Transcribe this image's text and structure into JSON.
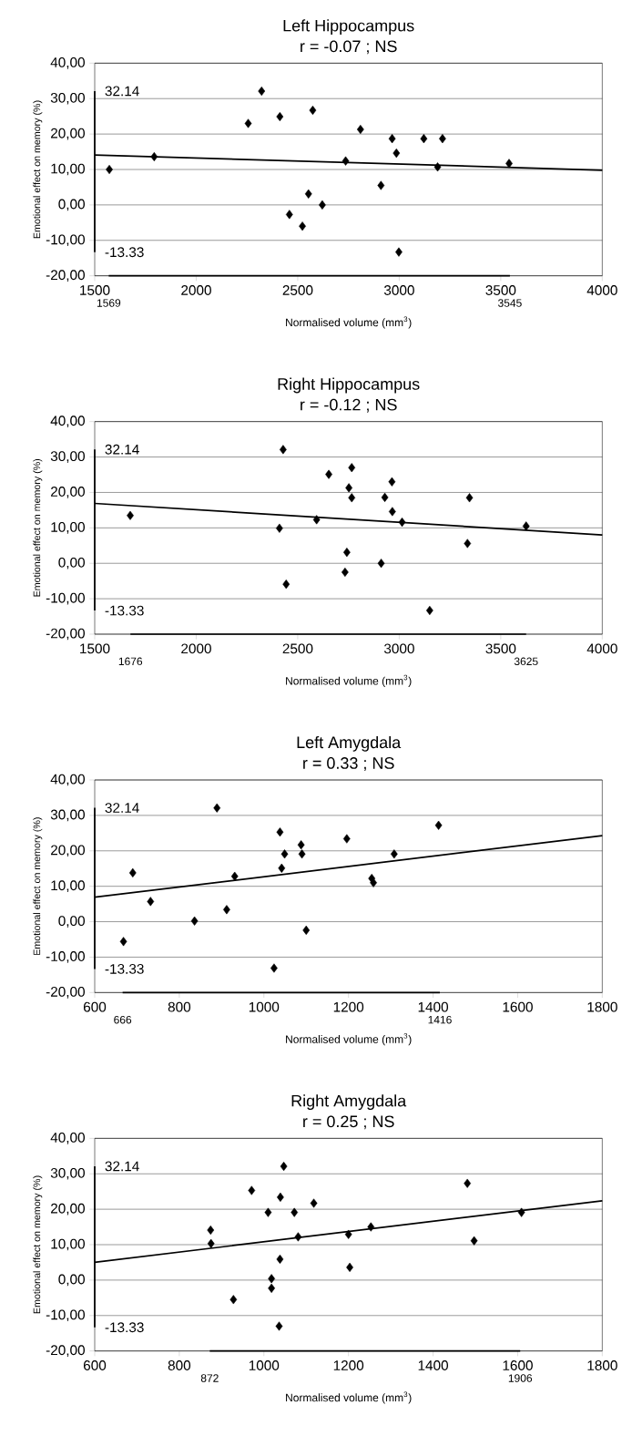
{
  "chart_data": [
    {
      "type": "scatter",
      "title": "Left Hippocampus",
      "subtitle": "r = -0.07 ; NS",
      "xlabel": "Normalised volume (mm$^{3}$)",
      "ylabel": "Emotional effect on memory (%)",
      "xlim": [
        1500,
        4000
      ],
      "xticks": [
        1500,
        2000,
        2500,
        3000,
        3500,
        4000
      ],
      "ylim": [
        -20,
        40
      ],
      "yticks": [
        {
          "value": -20,
          "label": "-20,00"
        },
        {
          "value": -10,
          "label": "-10,00"
        },
        {
          "value": 0,
          "label": "0,00"
        },
        {
          "value": 10,
          "label": "10,00"
        },
        {
          "value": 20,
          "label": "20,00"
        },
        {
          "value": 30,
          "label": "30,00"
        },
        {
          "value": 40,
          "label": "40,00"
        }
      ],
      "grid": "y",
      "marker": "diamond",
      "series": [
        {
          "type": "scatter",
          "color": "#000000",
          "x": [
            1572,
            1793,
            2256,
            2322,
            2412,
            2574,
            2809,
            2736,
            2965,
            2986,
            3121,
            3213,
            3189,
            3541,
            2910,
            2553,
            2621,
            2459,
            2523,
            2998
          ],
          "values": [
            10.0,
            13.6,
            23.0,
            32.1,
            24.9,
            26.7,
            21.3,
            12.4,
            18.7,
            14.6,
            18.7,
            18.7,
            10.7,
            11.7,
            5.5,
            3.1,
            0.0,
            -2.7,
            -6.0,
            -13.3
          ]
        },
        {
          "type": "line",
          "marker": "none",
          "color": "#000000",
          "x": [
            1500,
            4000
          ],
          "values": [
            14.1,
            9.8
          ]
        },
        {
          "type": "line",
          "marker": "none",
          "color": "#000000",
          "x": [
            1500,
            1500
          ],
          "values": [
            32.14,
            -13.33
          ]
        },
        {
          "type": "line",
          "marker": "none",
          "color": "#000000",
          "x": [
            1569,
            3545
          ],
          "values": [
            -20,
            -20
          ]
        }
      ],
      "annotations": [
        {
          "text": "32.14",
          "x": 1500,
          "y": 32.14
        },
        {
          "text": "-13.33",
          "x": 1500,
          "y": -13.33
        },
        {
          "text": "1569",
          "x": 1569,
          "y": -20
        },
        {
          "text": "3545",
          "x": 3545,
          "y": -20
        }
      ]
    },
    {
      "type": "scatter",
      "title": "Right Hippocampus",
      "subtitle": "r = -0.12 ; NS",
      "xlabel": "Normalised volume (mm$^{3}$)",
      "ylabel": "Emotional effect on memory (%)",
      "xlim": [
        1500,
        4000
      ],
      "xticks": [
        1500,
        2000,
        2500,
        3000,
        3500,
        4000
      ],
      "ylim": [
        -20,
        40
      ],
      "yticks": [
        {
          "value": -20,
          "label": "-20,00"
        },
        {
          "value": -10,
          "label": "-10,00"
        },
        {
          "value": 0,
          "label": "0,00"
        },
        {
          "value": 10,
          "label": "10,00"
        },
        {
          "value": 20,
          "label": "20,00"
        },
        {
          "value": 30,
          "label": "30,00"
        },
        {
          "value": 40,
          "label": "40,00"
        }
      ],
      "grid": "y",
      "marker": "diamond",
      "series": [
        {
          "type": "scatter",
          "color": "#000000",
          "x": [
            1675,
            2428,
            2410,
            2443,
            2593,
            2653,
            2766,
            2752,
            2766,
            2742,
            2733,
            2911,
            2929,
            2964,
            2966,
            3014,
            3150,
            3346,
            3336,
            3625
          ],
          "values": [
            13.5,
            32.1,
            9.9,
            -5.9,
            12.3,
            25.1,
            27.0,
            21.3,
            18.5,
            3.1,
            -2.5,
            0.0,
            18.6,
            23.0,
            14.6,
            11.6,
            -13.3,
            18.5,
            5.6,
            10.5
          ]
        },
        {
          "type": "line",
          "marker": "none",
          "color": "#000000",
          "x": [
            1500,
            4000
          ],
          "values": [
            16.9,
            8.0
          ]
        },
        {
          "type": "line",
          "marker": "none",
          "color": "#000000",
          "x": [
            1500,
            1500
          ],
          "values": [
            32.14,
            -13.33
          ]
        },
        {
          "type": "line",
          "marker": "none",
          "color": "#000000",
          "x": [
            1676,
            3625
          ],
          "values": [
            -20,
            -20
          ]
        }
      ],
      "annotations": [
        {
          "text": "32.14",
          "x": 1500,
          "y": 32.14
        },
        {
          "text": "-13.33",
          "x": 1500,
          "y": -13.33
        },
        {
          "text": "1676",
          "x": 1676,
          "y": -20
        },
        {
          "text": "3625",
          "x": 3625,
          "y": -20
        }
      ]
    },
    {
      "type": "scatter",
      "title": "Left Amygdala",
      "subtitle": "r = 0.33 ; NS",
      "xlabel": "Normalised volume (mm$^{3}$)",
      "ylabel": "Emotional effect on memory (%)",
      "xlim": [
        600,
        1800
      ],
      "xticks": [
        600,
        800,
        1000,
        1200,
        1400,
        1600,
        1800
      ],
      "ylim": [
        -20,
        40
      ],
      "yticks": [
        {
          "value": -20,
          "label": "-20,00"
        },
        {
          "value": -10,
          "label": "-10,00"
        },
        {
          "value": 0,
          "label": "0,00"
        },
        {
          "value": 10,
          "label": "10,00"
        },
        {
          "value": 20,
          "label": "20,00"
        },
        {
          "value": 30,
          "label": "30,00"
        },
        {
          "value": 40,
          "label": "40,00"
        }
      ],
      "grid": "y",
      "marker": "diamond",
      "series": [
        {
          "type": "scatter",
          "color": "#000000",
          "x": [
            668,
            690,
            732,
            836,
            889,
            912,
            931,
            1024,
            1038,
            1042,
            1049,
            1088,
            1090,
            1100,
            1196,
            1255,
            1259,
            1308,
            1413
          ],
          "values": [
            -5.6,
            13.8,
            5.7,
            0.2,
            32.1,
            3.4,
            12.8,
            -13.1,
            25.3,
            15.1,
            19.1,
            21.7,
            19.1,
            -2.4,
            23.4,
            12.2,
            11.0,
            19.1,
            27.2
          ]
        },
        {
          "type": "line",
          "marker": "none",
          "color": "#000000",
          "x": [
            600,
            1800
          ],
          "values": [
            6.9,
            24.3
          ]
        },
        {
          "type": "line",
          "marker": "none",
          "color": "#000000",
          "x": [
            600,
            600
          ],
          "values": [
            32.14,
            -13.33
          ]
        },
        {
          "type": "line",
          "marker": "none",
          "color": "#000000",
          "x": [
            666,
            1416
          ],
          "values": [
            -20,
            -20
          ]
        }
      ],
      "annotations": [
        {
          "text": "32.14",
          "x": 600,
          "y": 32.14
        },
        {
          "text": "-13.33",
          "x": 600,
          "y": -13.33
        },
        {
          "text": "666",
          "x": 666,
          "y": -20
        },
        {
          "text": "1416",
          "x": 1416,
          "y": -20
        }
      ]
    },
    {
      "type": "scatter",
      "title": "Right Amygdala",
      "subtitle": "r = 0.25 ; NS",
      "xlabel": "Normalised volume (mm$^{3}$)",
      "ylabel": "Emotional effect on memory (%)",
      "xlim": [
        600,
        1800
      ],
      "xticks": [
        600,
        800,
        1000,
        1200,
        1400,
        1600,
        1800
      ],
      "ylim": [
        -20,
        40
      ],
      "yticks": [
        {
          "value": -20,
          "label": "-20,00"
        },
        {
          "value": -10,
          "label": "-10,00"
        },
        {
          "value": 0,
          "label": "0,00"
        },
        {
          "value": 10,
          "label": "10,00"
        },
        {
          "value": 20,
          "label": "20,00"
        },
        {
          "value": 30,
          "label": "30,00"
        },
        {
          "value": 40,
          "label": "40,00"
        }
      ],
      "grid": "y",
      "marker": "diamond",
      "series": [
        {
          "type": "scatter",
          "color": "#000000",
          "x": [
            874,
            875,
            928,
            971,
            1010,
            1018,
            1018,
            1039,
            1047,
            1038,
            1036,
            1072,
            1081,
            1118,
            1200,
            1203,
            1253,
            1481,
            1497,
            1609
          ],
          "values": [
            14.1,
            10.3,
            -5.5,
            25.3,
            19.1,
            0.4,
            -2.3,
            23.4,
            32.1,
            5.9,
            -13.0,
            19.1,
            12.2,
            21.7,
            12.9,
            3.6,
            15.0,
            27.3,
            11.1,
            19.1
          ]
        },
        {
          "type": "line",
          "marker": "none",
          "color": "#000000",
          "x": [
            600,
            1800
          ],
          "values": [
            5.0,
            22.4
          ]
        },
        {
          "type": "line",
          "marker": "none",
          "color": "#000000",
          "x": [
            600,
            600
          ],
          "values": [
            32.14,
            -13.33
          ]
        },
        {
          "type": "line",
          "marker": "none",
          "color": "#000000",
          "x": [
            872,
            1606
          ],
          "values": [
            -20,
            -20
          ]
        }
      ],
      "annotations": [
        {
          "text": "32.14",
          "x": 600,
          "y": 32.14
        },
        {
          "text": "-13.33",
          "x": 600,
          "y": -13.33
        },
        {
          "text": "872",
          "x": 872,
          "y": -20
        },
        {
          "text": "1906",
          "x": 1606,
          "y": -20
        }
      ]
    }
  ]
}
